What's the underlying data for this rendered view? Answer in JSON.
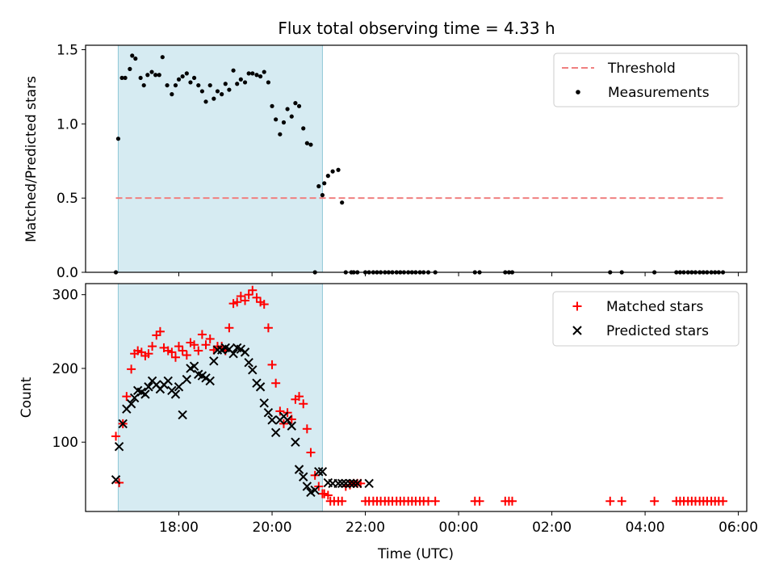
{
  "figure": {
    "title": "Flux total observing time = 4.33 h",
    "xlabel": "Time (UTC)",
    "x_tick_labels": [
      "18:00",
      "20:00",
      "22:00",
      "00:00",
      "02:00",
      "04:00",
      "06:00"
    ]
  },
  "colors": {
    "threshold": "#f08080",
    "measurements": "#000000",
    "matched": "#ff0000",
    "predicted": "#000000",
    "shaded_region": "#add8e6"
  },
  "chart_data": [
    {
      "type": "scatter",
      "name": "top-panel",
      "ylabel": "Matched/Predicted stars",
      "ylim": [
        0,
        1.53
      ],
      "yticks": [
        0,
        0.5,
        1.0,
        1.5
      ],
      "ytick_labels": [
        "0.0",
        "0.5",
        "1.0",
        "1.5"
      ],
      "xlim_hours": [
        16.0,
        30.18
      ],
      "shaded_span_hours": [
        16.7,
        21.08
      ],
      "legend_position": "top-right",
      "threshold": {
        "label": "Threshold",
        "value": 0.5,
        "x_range_hours": [
          16.65,
          29.7
        ]
      },
      "series": [
        {
          "name": "Measurements",
          "x_hours": [
            16.65,
            16.7,
            16.78,
            16.85,
            16.95,
            17.0,
            17.07,
            17.18,
            17.25,
            17.33,
            17.42,
            17.5,
            17.58,
            17.65,
            17.75,
            17.85,
            17.93,
            18.0,
            18.08,
            18.17,
            18.25,
            18.33,
            18.42,
            18.5,
            18.58,
            18.67,
            18.75,
            18.83,
            18.92,
            19.0,
            19.08,
            19.17,
            19.25,
            19.33,
            19.42,
            19.5,
            19.58,
            19.67,
            19.75,
            19.83,
            19.92,
            20.0,
            20.08,
            20.17,
            20.25,
            20.33,
            20.42,
            20.5,
            20.58,
            20.67,
            20.75,
            20.83,
            20.92,
            21.0,
            21.08,
            21.12,
            21.2,
            21.3,
            21.42,
            21.5,
            21.58,
            21.7,
            21.75,
            21.83,
            22.0,
            22.08,
            22.17,
            22.25,
            22.33,
            22.42,
            22.5,
            22.58,
            22.67,
            22.75,
            22.83,
            22.92,
            23.0,
            23.08,
            23.17,
            23.25,
            23.35,
            23.5,
            24.35,
            24.45,
            25.0,
            25.08,
            25.15,
            27.25,
            27.5,
            28.2,
            28.67,
            28.75,
            28.83,
            28.92,
            29.0,
            29.08,
            29.17,
            29.25,
            29.33,
            29.42,
            29.5,
            29.58,
            29.67
          ],
          "y": [
            0.0,
            0.9,
            1.31,
            1.31,
            1.37,
            1.46,
            1.44,
            1.31,
            1.26,
            1.33,
            1.35,
            1.33,
            1.33,
            1.45,
            1.26,
            1.2,
            1.26,
            1.3,
            1.32,
            1.34,
            1.28,
            1.31,
            1.26,
            1.22,
            1.15,
            1.26,
            1.17,
            1.22,
            1.2,
            1.27,
            1.23,
            1.36,
            1.27,
            1.3,
            1.28,
            1.34,
            1.34,
            1.33,
            1.32,
            1.35,
            1.28,
            1.12,
            1.03,
            0.93,
            1.01,
            1.1,
            1.05,
            1.14,
            1.12,
            0.97,
            0.87,
            0.86,
            0.0,
            0.58,
            0.52,
            0.6,
            0.65,
            0.68,
            0.69,
            0.47,
            0.0,
            0.0,
            0.0,
            0.0,
            0.0,
            0.0,
            0.0,
            0.0,
            0.0,
            0.0,
            0.0,
            0.0,
            0.0,
            0.0,
            0.0,
            0.0,
            0.0,
            0.0,
            0.0,
            0.0,
            0.0,
            0.0,
            0.0,
            0.0,
            0.0,
            0.0,
            0.0,
            0.0,
            0.0,
            0.0,
            0.0,
            0.0,
            0.0,
            0.0,
            0.0,
            0.0,
            0.0,
            0.0,
            0.0,
            0.0,
            0.0,
            0.0,
            0.0
          ]
        }
      ]
    },
    {
      "type": "scatter",
      "name": "bottom-panel",
      "ylabel": "Count",
      "ylim": [
        6,
        315
      ],
      "yticks": [
        100,
        200,
        300
      ],
      "ytick_labels": [
        "100",
        "200",
        "300"
      ],
      "xlim_hours": [
        16.0,
        30.18
      ],
      "shaded_span_hours": [
        16.7,
        21.08
      ],
      "legend_position": "top-right",
      "series": [
        {
          "name": "Matched stars",
          "marker": "+",
          "x_hours": [
            16.65,
            16.72,
            16.8,
            16.88,
            16.98,
            17.05,
            17.12,
            17.2,
            17.28,
            17.35,
            17.43,
            17.52,
            17.6,
            17.68,
            17.77,
            17.85,
            17.93,
            18.0,
            18.08,
            18.17,
            18.25,
            18.33,
            18.42,
            18.5,
            18.58,
            18.67,
            18.75,
            18.83,
            18.92,
            19.0,
            19.08,
            19.17,
            19.25,
            19.33,
            19.42,
            19.5,
            19.58,
            19.67,
            19.75,
            19.83,
            19.92,
            20.0,
            20.08,
            20.17,
            20.25,
            20.33,
            20.42,
            20.5,
            20.58,
            20.67,
            20.75,
            20.83,
            20.92,
            21.0,
            21.08,
            21.12,
            21.2,
            21.25,
            21.33,
            21.42,
            21.5,
            21.58,
            21.67,
            21.75,
            21.83,
            21.9,
            22.0,
            22.08,
            22.17,
            22.25,
            22.33,
            22.42,
            22.5,
            22.58,
            22.67,
            22.75,
            22.83,
            22.92,
            23.0,
            23.08,
            23.17,
            23.25,
            23.35,
            23.5,
            24.35,
            24.45,
            25.0,
            25.08,
            25.15,
            27.25,
            27.5,
            28.2,
            28.67,
            28.75,
            28.83,
            28.92,
            29.0,
            29.08,
            29.17,
            29.25,
            29.33,
            29.42,
            29.5,
            29.58,
            29.67
          ],
          "y": [
            108,
            45,
            125,
            162,
            199,
            220,
            224,
            222,
            217,
            220,
            230,
            245,
            250,
            228,
            224,
            222,
            215,
            230,
            224,
            218,
            235,
            232,
            224,
            246,
            232,
            240,
            225,
            230,
            230,
            224,
            255,
            288,
            290,
            298,
            292,
            300,
            306,
            296,
            290,
            287,
            255,
            205,
            180,
            142,
            125,
            140,
            131,
            158,
            162,
            152,
            118,
            86,
            55,
            40,
            30,
            30,
            28,
            20,
            20,
            20,
            20,
            40,
            42,
            44,
            44,
            44,
            20,
            20,
            20,
            20,
            20,
            20,
            20,
            20,
            20,
            20,
            20,
            20,
            20,
            20,
            20,
            20,
            20,
            20,
            20,
            20,
            20,
            20,
            20,
            20,
            20,
            20,
            20,
            20,
            20,
            20,
            20,
            20,
            20,
            20,
            20,
            20,
            20,
            20,
            20
          ]
        },
        {
          "name": "Predicted stars",
          "marker": "x",
          "x_hours": [
            16.65,
            16.72,
            16.8,
            16.88,
            16.98,
            17.05,
            17.12,
            17.2,
            17.28,
            17.35,
            17.43,
            17.52,
            17.6,
            17.68,
            17.77,
            17.85,
            17.93,
            18.0,
            18.08,
            18.17,
            18.25,
            18.33,
            18.42,
            18.5,
            18.58,
            18.67,
            18.75,
            18.83,
            18.92,
            19.0,
            19.08,
            19.17,
            19.25,
            19.33,
            19.42,
            19.5,
            19.58,
            19.67,
            19.75,
            19.83,
            19.92,
            20.0,
            20.08,
            20.17,
            20.25,
            20.33,
            20.42,
            20.5,
            20.58,
            20.67,
            20.75,
            20.83,
            20.92,
            21.0,
            21.08,
            21.2,
            21.3,
            21.42,
            21.5,
            21.58,
            21.67,
            21.75,
            21.83,
            22.08
          ],
          "y": [
            49,
            94,
            125,
            145,
            152,
            160,
            170,
            168,
            165,
            175,
            183,
            178,
            172,
            178,
            183,
            170,
            165,
            175,
            137,
            185,
            200,
            203,
            192,
            190,
            187,
            183,
            210,
            225,
            225,
            228,
            226,
            220,
            228,
            226,
            222,
            208,
            198,
            180,
            175,
            153,
            140,
            130,
            113,
            130,
            135,
            130,
            122,
            100,
            63,
            53,
            40,
            32,
            35,
            60,
            60,
            45,
            44,
            44,
            44,
            44,
            44,
            44,
            44,
            44
          ]
        }
      ]
    }
  ]
}
